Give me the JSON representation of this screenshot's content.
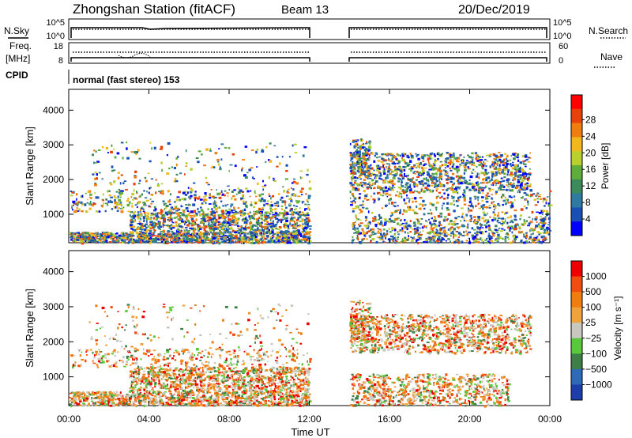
{
  "header": {
    "station": "Zhongshan Station (fitACF)",
    "beam": "Beam 13",
    "date": "20/Dec/2019"
  },
  "panels": {
    "nsky_label": "N.Sky",
    "nsky_ticks": [
      "10^5",
      "10^0"
    ],
    "nsearch_label": "N.Search",
    "freq_label": "Freq.",
    "freq_unit": "[MHz]",
    "freq_ticks": [
      "18",
      "8"
    ],
    "nave_ticks": [
      "60",
      "0"
    ],
    "nave_label": "Nave",
    "cpid_label": "CPID",
    "cpid_value": "normal (fast stereo) 153"
  },
  "chart_data": [
    {
      "type": "heatmap",
      "name": "power",
      "title": "",
      "xlabel": "",
      "ylabel": "Slant Range [km]",
      "xlim": [
        "00:00",
        "24:00"
      ],
      "ylim": [
        180,
        4600
      ],
      "y_ticks": [
        "1000",
        "2000",
        "3000",
        "4000"
      ],
      "data_gap_ut": [
        "12:00",
        "14:00"
      ],
      "colorbar": {
        "label": "Power [dB]",
        "ticks": [
          "4",
          "8",
          "12",
          "16",
          "20",
          "24",
          "28"
        ],
        "colors": [
          "#0000ff",
          "#1a4fb5",
          "#2f7aa0",
          "#3d8a5a",
          "#5fae3b",
          "#b8cf2e",
          "#f0b81d",
          "#f07d10",
          "#e8420c",
          "#ff0000"
        ]
      }
    },
    {
      "type": "heatmap",
      "name": "velocity",
      "title": "",
      "xlabel": "Time UT",
      "ylabel": "Slant Range [km]",
      "xlim": [
        "00:00",
        "24:00"
      ],
      "ylim": [
        180,
        4600
      ],
      "y_ticks": [
        "1000",
        "2000",
        "3000",
        "4000"
      ],
      "x_ticks": [
        "00:00",
        "04:00",
        "08:00",
        "12:00",
        "16:00",
        "20:00",
        "00:00"
      ],
      "data_gap_ut": [
        "12:00",
        "14:00"
      ],
      "colorbar": {
        "label": "Velocity [m s⁻¹]",
        "ticks": [
          "1000",
          "500",
          "100",
          "25",
          "−25",
          "−100",
          "−500",
          "−1000"
        ],
        "colors": [
          "#1c3ea8",
          "#2d6ab8",
          "#3d7f47",
          "#58c93a",
          "#c8c8c0",
          "#f0a23c",
          "#f07d10",
          "#f04e10",
          "#ee0000"
        ]
      }
    }
  ]
}
